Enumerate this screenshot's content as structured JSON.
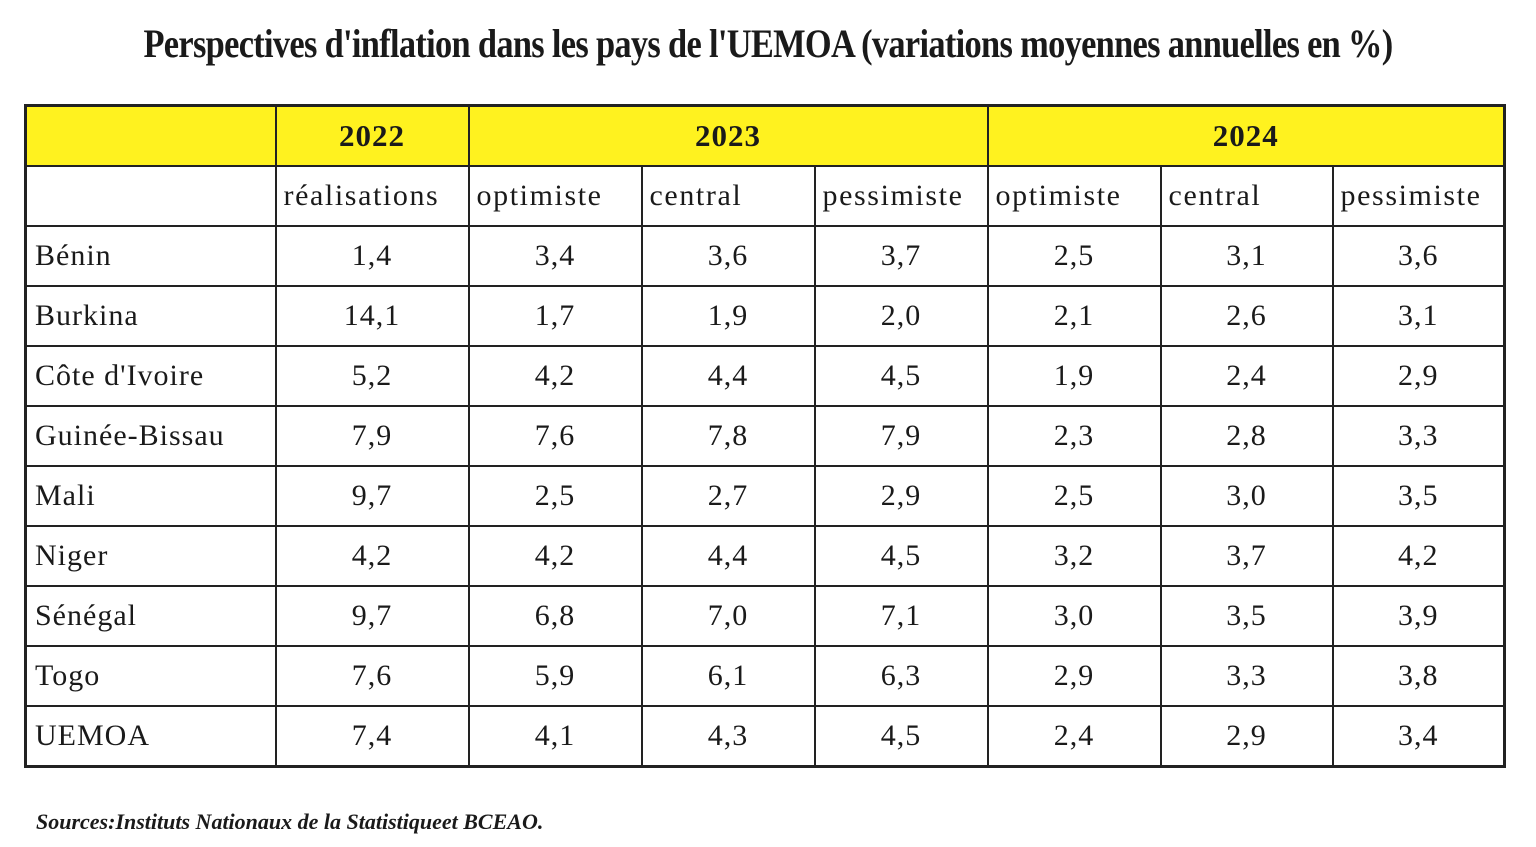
{
  "title": "Perspectives d'inflation dans les pays de l'UEMOA (variations moyennes annuelles en %)",
  "colors": {
    "header_background": "#fff21f",
    "border": "#222222",
    "text": "#1a1a1a"
  },
  "table": {
    "years": [
      "2022",
      "2023",
      "2024"
    ],
    "scenarios": [
      "réalisations",
      "optimiste",
      "central",
      "pessimiste",
      "optimiste",
      "central",
      "pessimiste"
    ],
    "rows": [
      {
        "country": "Bénin",
        "values": [
          "1,4",
          "3,4",
          "3,6",
          "3,7",
          "2,5",
          "3,1",
          "3,6"
        ]
      },
      {
        "country": "Burkina",
        "values": [
          "14,1",
          "1,7",
          "1,9",
          "2,0",
          "2,1",
          "2,6",
          "3,1"
        ]
      },
      {
        "country": "Côte d'Ivoire",
        "values": [
          "5,2",
          "4,2",
          "4,4",
          "4,5",
          "1,9",
          "2,4",
          "2,9"
        ]
      },
      {
        "country": "Guinée-Bissau",
        "values": [
          "7,9",
          "7,6",
          "7,8",
          "7,9",
          "2,3",
          "2,8",
          "3,3"
        ]
      },
      {
        "country": "Mali",
        "values": [
          "9,7",
          "2,5",
          "2,7",
          "2,9",
          "2,5",
          "3,0",
          "3,5"
        ]
      },
      {
        "country": "Niger",
        "values": [
          "4,2",
          "4,2",
          "4,4",
          "4,5",
          "3,2",
          "3,7",
          "4,2"
        ]
      },
      {
        "country": "Sénégal",
        "values": [
          "9,7",
          "6,8",
          "7,0",
          "7,1",
          "3,0",
          "3,5",
          "3,9"
        ]
      },
      {
        "country": "Togo",
        "values": [
          "7,6",
          "5,9",
          "6,1",
          "6,3",
          "2,9",
          "3,3",
          "3,8"
        ]
      },
      {
        "country": "UEMOA",
        "values": [
          "7,4",
          "4,1",
          "4,3",
          "4,5",
          "2,4",
          "2,9",
          "3,4"
        ]
      }
    ]
  },
  "source": "Sources:Instituts Nationaux de la Statistiqueet BCEAO."
}
